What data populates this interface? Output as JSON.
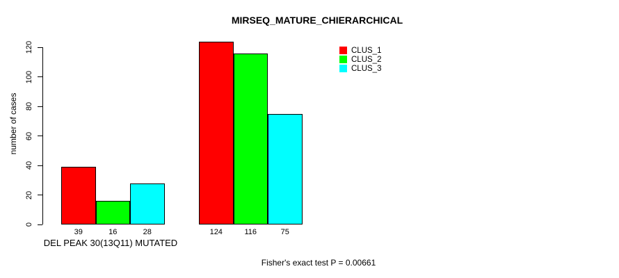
{
  "chart_data": {
    "type": "bar",
    "title": "MIRSEQ_MATURE_CHIERARCHICAL",
    "ylabel": "number of cases",
    "xlabel": "DEL PEAK 30(13Q11) MUTATED",
    "categories": [
      "DEL PEAK 30(13Q11) MUTATED",
      ""
    ],
    "series": [
      {
        "name": "CLUS_1",
        "color": "#ff0000",
        "values": [
          39,
          124
        ]
      },
      {
        "name": "CLUS_2",
        "color": "#00ff00",
        "values": [
          16,
          116
        ]
      },
      {
        "name": "CLUS_3",
        "color": "#00ffff",
        "values": [
          28,
          75
        ]
      }
    ],
    "y_ticks": [
      0,
      20,
      40,
      60,
      80,
      100,
      120
    ],
    "ylim": [
      0,
      120
    ],
    "bar_value_labels": true,
    "grid": false,
    "legend_position": "top-right",
    "footer": "Fisher's exact test P = 0.00661"
  }
}
